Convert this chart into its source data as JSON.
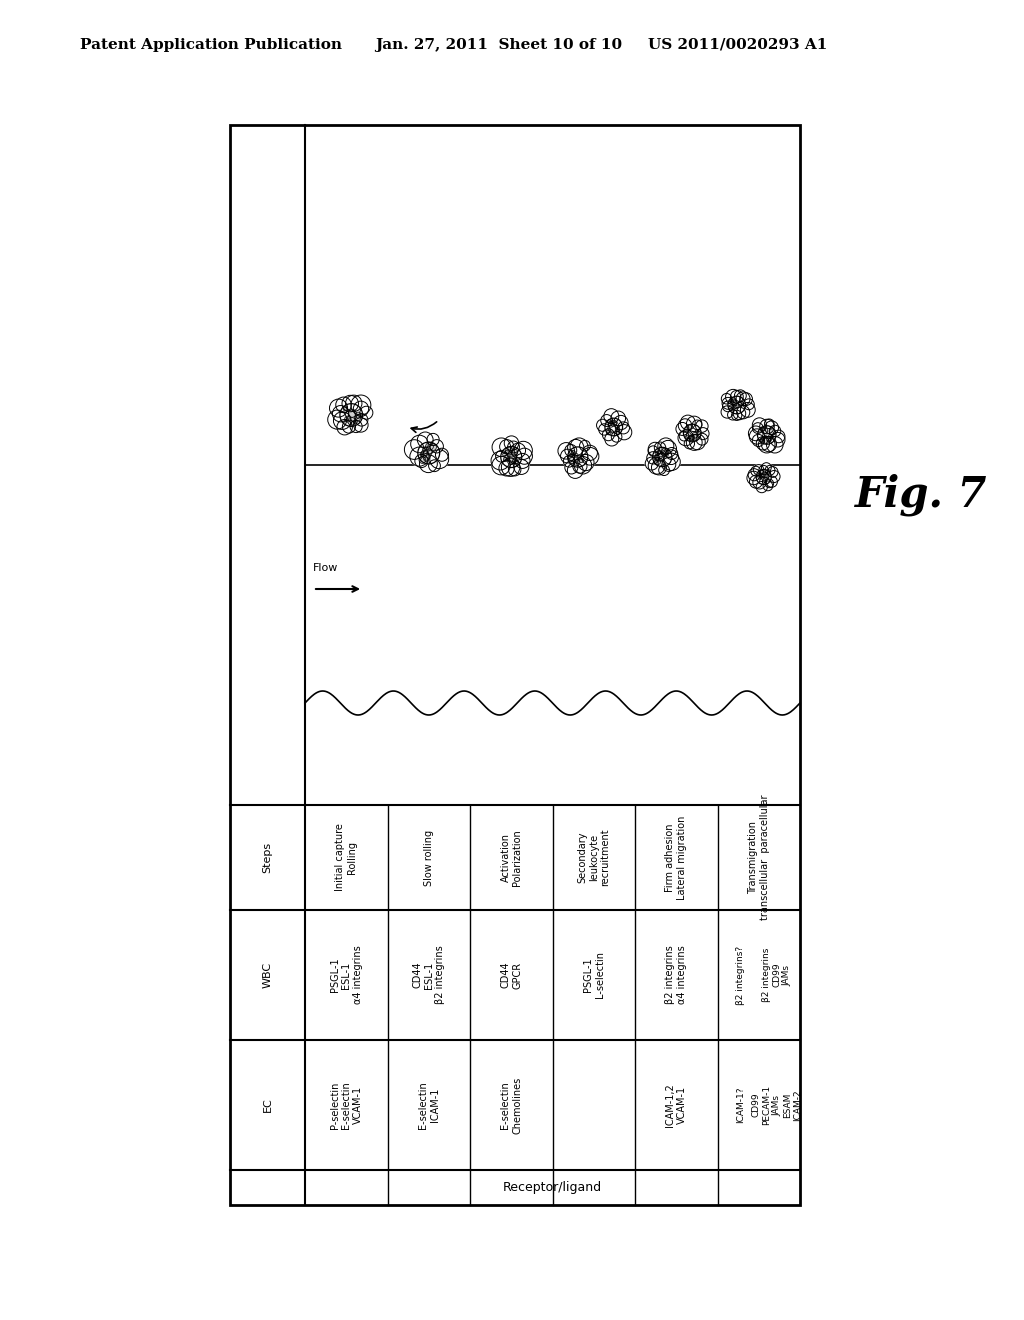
{
  "header_left": "Patent Application Publication",
  "header_mid": "Jan. 27, 2011  Sheet 10 of 10",
  "header_right": "US 2011/0020293 A1",
  "fig_label": "Fig. 7",
  "bg_color": "#ffffff",
  "steps": [
    "Initial capture\nRolling",
    "Slow rolling",
    "Activation\nPolarization",
    "Secondary\nleukocyte\nrecruitment",
    "Firm adhesion\nLateral migration",
    "Transmigration\ntranscellular  paracellular"
  ],
  "wbc_labels": [
    "PSGL-1\nESL-1\nα4 integrins",
    "CD44\nESL-1\nβ2 integrins",
    "CD44\nGPCR",
    "PSGL-1\nL-selectin",
    "β2 integrins\nα4 integrins",
    "β2 integrins\nCD99\nJAMs"
  ],
  "ec_labels": [
    "P-selectin\nE-selectin\nVCAM-1",
    "E-selectin\nICAM-1",
    "E-selectin\nChemolines",
    "",
    "ICAM-1,2\nVCAM-1",
    "CD99\nPECAM-1\nJAMs\nESAM\nICAM-2"
  ],
  "transmig_wbc_left": "β2 integrins?",
  "transmig_ec_left": "ICAM-1?",
  "flow_label": "Flow",
  "steps_label": "Steps",
  "wbc_row_label": "WBC",
  "ec_row_label": "EC",
  "receptor_ligand_label": "Receptor/ligand"
}
